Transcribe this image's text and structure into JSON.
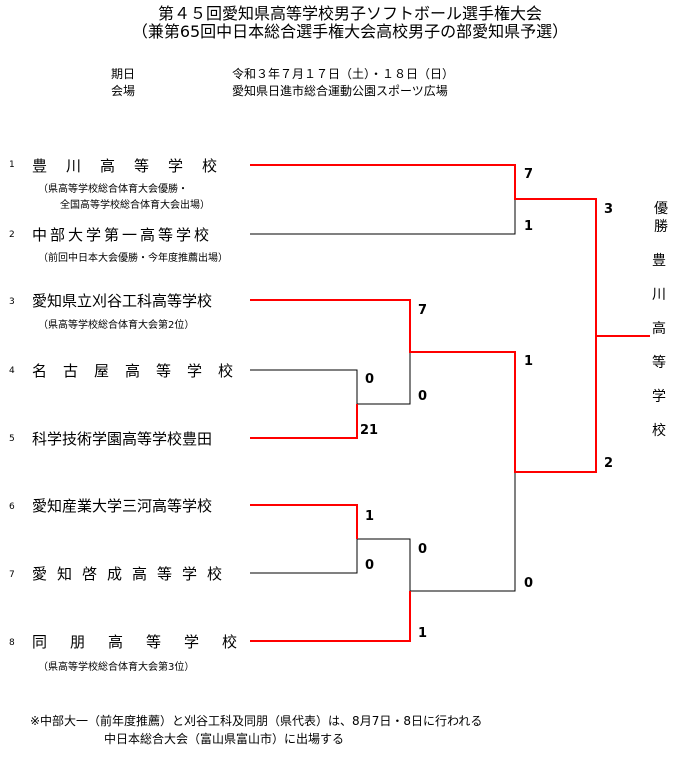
{
  "header": {
    "title": "第４５回愛知県高等学校男子ソフトボール選手権大会",
    "subtitle": "（兼第65回中日本総合選手権大会高校男子の部愛知県予選）",
    "date_label": "期日",
    "date_value": "令和３年７月１７日（土）・１８日（日）",
    "venue_label": "会場",
    "venue_value": "愛知県日進市総合運動公園スポーツ広場"
  },
  "teams": [
    {
      "seed": "1",
      "name": "豊川高等学校",
      "note_line1": "（県高等学校総合体育大会優勝・",
      "note_line2": "全国高等学校総合体育大会出場）"
    },
    {
      "seed": "2",
      "name": "中部大学第一高等学校",
      "note_line1": "（前回中日本大会優勝・今年度推薦出場）",
      "note_line2": ""
    },
    {
      "seed": "3",
      "name": "愛知県立刈谷工科高等学校",
      "note_line1": "（県高等学校総合体育大会第2位）",
      "note_line2": ""
    },
    {
      "seed": "4",
      "name": "名古屋高等学校",
      "note_line1": "",
      "note_line2": ""
    },
    {
      "seed": "5",
      "name": "科学技術学園高等学校豊田",
      "note_line1": "",
      "note_line2": ""
    },
    {
      "seed": "6",
      "name": "愛知産業大学三河高等学校",
      "note_line1": "",
      "note_line2": ""
    },
    {
      "seed": "7",
      "name": "愛知啓成高等学校",
      "note_line1": "",
      "note_line2": ""
    },
    {
      "seed": "8",
      "name": "同朋高等学校",
      "note_line1": "（県高等学校総合体育大会第3位）",
      "note_line2": ""
    }
  ],
  "scores": {
    "r1_4": "0",
    "r1_5": "21",
    "qf_1": "7",
    "qf_2": "1",
    "qf_3": "7",
    "qf_45": "0",
    "qf_6": "1",
    "qf_7": "0",
    "qf_67": "0",
    "qf_8": "1",
    "sf_top": "1",
    "sf_bot": "0",
    "final_top": "3",
    "final_bot": "2"
  },
  "champion": {
    "label": "優勝",
    "chars": [
      "豊",
      "川",
      "高",
      "等",
      "学",
      "校"
    ]
  },
  "footnote": {
    "line1": "※中部大一（前年度推薦）と刈谷工科及同朋（県代表）は、8月7日・8日に行われる",
    "line2": "中日本総合大会（富山県富山市）に出場する"
  },
  "colors": {
    "winner_line": "#ff0000",
    "loser_line": "#000000"
  }
}
